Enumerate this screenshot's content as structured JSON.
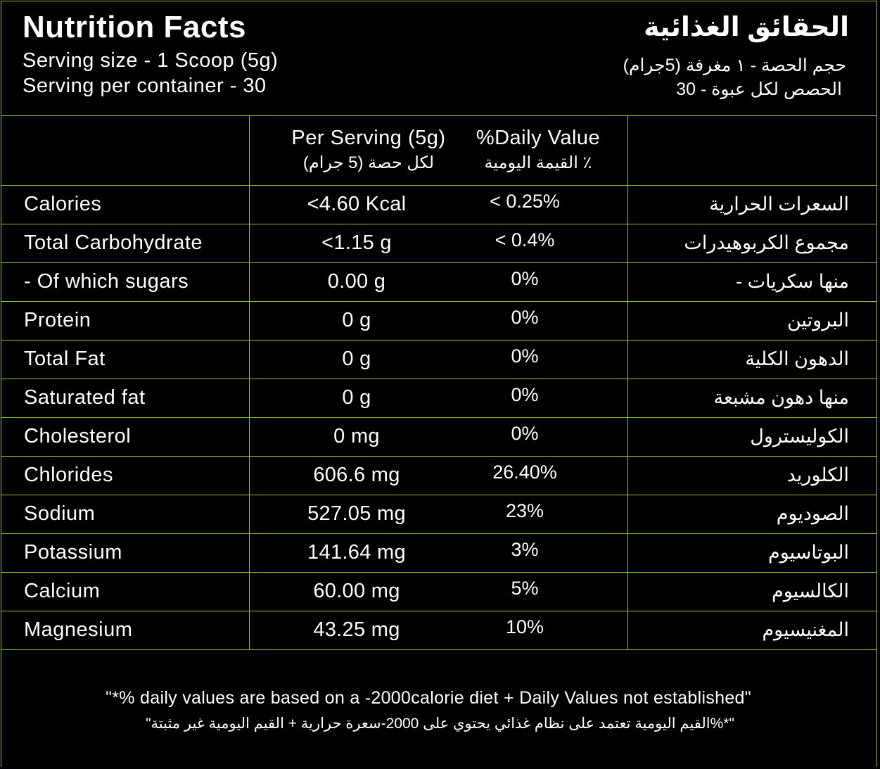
{
  "header": {
    "title_en": "Nutrition Facts",
    "serving_size_en": "Serving size - 1 Scoop (5g)",
    "servings_per_container_en": "Serving per container - 30",
    "title_ar": "الحقائق الغذائية",
    "serving_size_ar": "حجم الحصة - ١ مغرفة (5جرام)",
    "servings_per_container_ar": "الحصص لكل عبوة - 30"
  },
  "columns": {
    "per_serving_en": "Per Serving (5g)",
    "per_serving_ar": "لكل حصة (5 جرام)",
    "daily_value_en": "%Daily Value",
    "daily_value_ar": "٪ القيمة اليومية"
  },
  "rows": [
    {
      "name_en": "Calories",
      "amount": "<4.60 Kcal",
      "dv": "< 0.25%",
      "name_ar": "السعرات الحرارية"
    },
    {
      "name_en": "Total Carbohydrate",
      "amount": "<1.15 g",
      "dv": "< 0.4%",
      "name_ar": "مجموع الكربوهيدرات"
    },
    {
      "name_en": "- Of which sugars",
      "amount": "0.00 g",
      "dv": "0%",
      "name_ar": "منها سكريات -"
    },
    {
      "name_en": "Protein",
      "amount": "0 g",
      "dv": "0%",
      "name_ar": "البروتين"
    },
    {
      "name_en": "Total Fat",
      "amount": "0 g",
      "dv": "0%",
      "name_ar": "الدهون الكلية"
    },
    {
      "name_en": "Saturated fat",
      "amount": "0 g",
      "dv": "0%",
      "name_ar": "منها دهون مشبعة"
    },
    {
      "name_en": "Cholesterol",
      "amount": "0 mg",
      "dv": "0%",
      "name_ar": "الكوليسترول"
    },
    {
      "name_en": "Chlorides",
      "amount": "606.6 mg",
      "dv": "26.40%",
      "name_ar": "الكلوريد"
    },
    {
      "name_en": "Sodium",
      "amount": "527.05 mg",
      "dv": "23%",
      "name_ar": "الصوديوم"
    },
    {
      "name_en": "Potassium",
      "amount": "141.64 mg",
      "dv": "3%",
      "name_ar": "البوتاسيوم"
    },
    {
      "name_en": "Calcium",
      "amount": "60.00 mg",
      "dv": "5%",
      "name_ar": "الكالسيوم"
    },
    {
      "name_en": "Magnesium",
      "amount": "43.25 mg",
      "dv": "10%",
      "name_ar": "المغنيسيوم"
    }
  ],
  "footer": {
    "note_en": "\"*% daily values are based on a -2000calorie diet + Daily Values not established\"",
    "note_ar": "\"*%القيم اليومية تعتمد على نظام غذائي يحتوي على 2000-سعرة حرارية + القيم اليومية غير مثبتة\""
  },
  "colors": {
    "background": "#000000",
    "text": "#ffffff",
    "rule": "#8fbf3a"
  }
}
